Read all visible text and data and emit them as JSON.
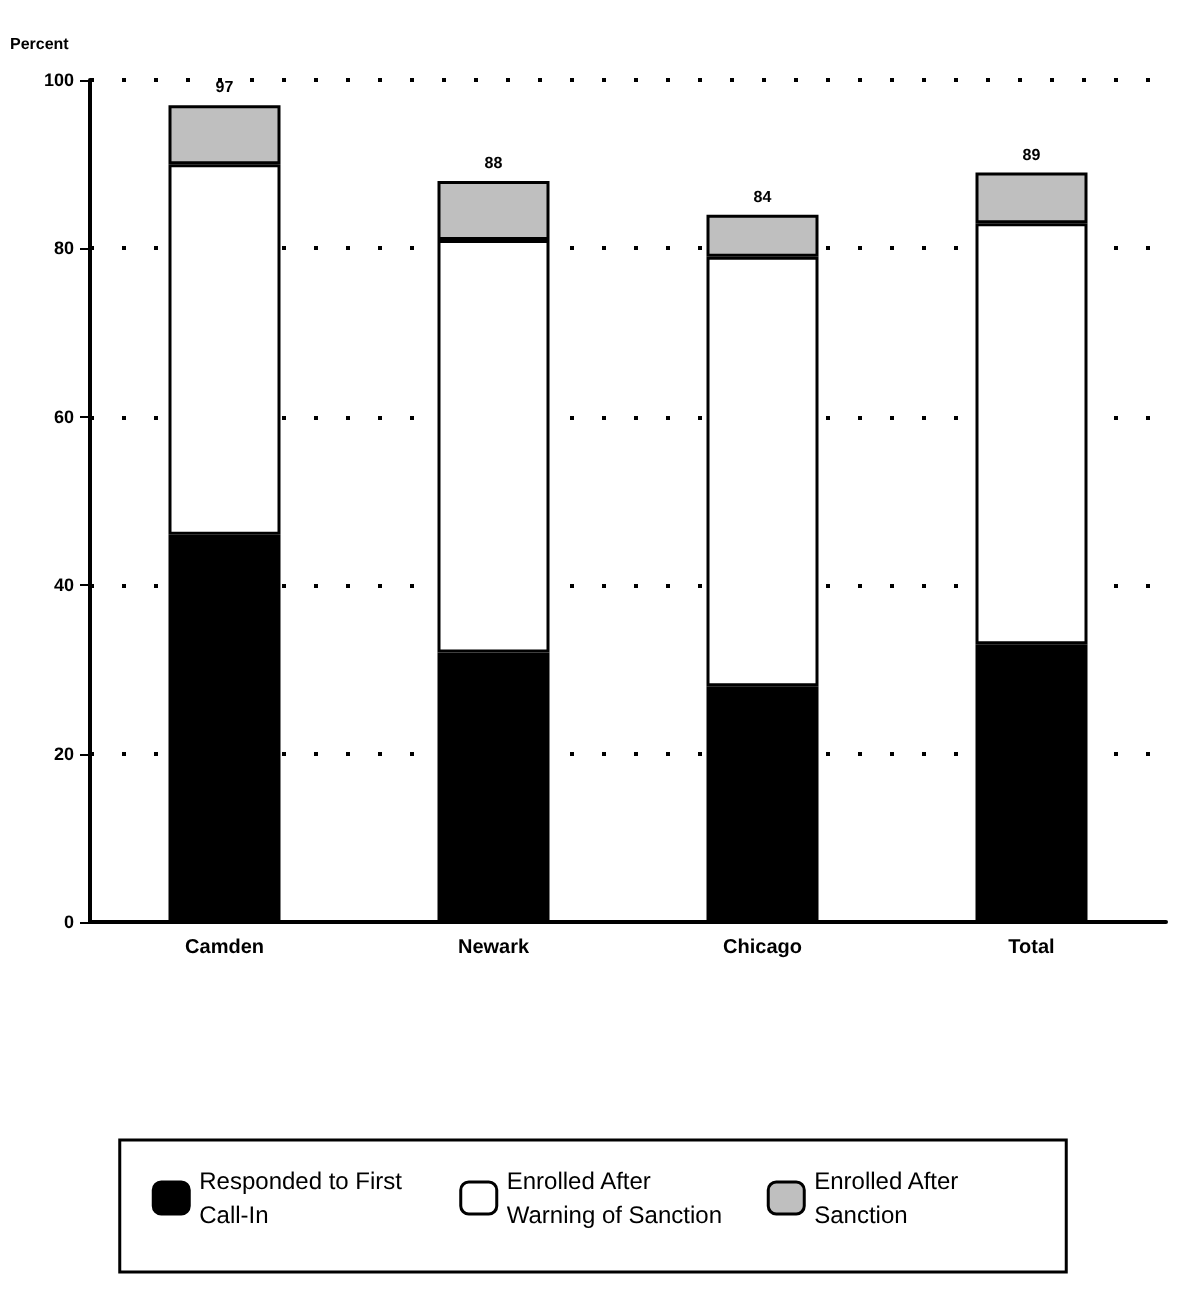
{
  "chart_data": {
    "type": "bar",
    "ylabel": "Percent",
    "categories": [
      "Camden",
      "Newark",
      "Chicago",
      "Total"
    ],
    "series": [
      {
        "name": "Responded to First Call-In",
        "color": "#000000",
        "values": [
          46,
          32,
          28,
          33
        ]
      },
      {
        "name": "Enrolled After Warning of Sanction",
        "color": "#ffffff",
        "values": [
          44,
          49,
          51,
          50
        ]
      },
      {
        "name": "Enrolled After Sanction",
        "color": "#bfbfbf",
        "values": [
          7,
          7,
          5,
          6
        ]
      }
    ],
    "stacked": true,
    "totals": [
      "97",
      "88",
      "84",
      "89"
    ],
    "ylim": [
      0,
      100
    ],
    "yticks": [
      0,
      20,
      40,
      60,
      80,
      100
    ],
    "grid": "y",
    "legend": "bottom"
  }
}
